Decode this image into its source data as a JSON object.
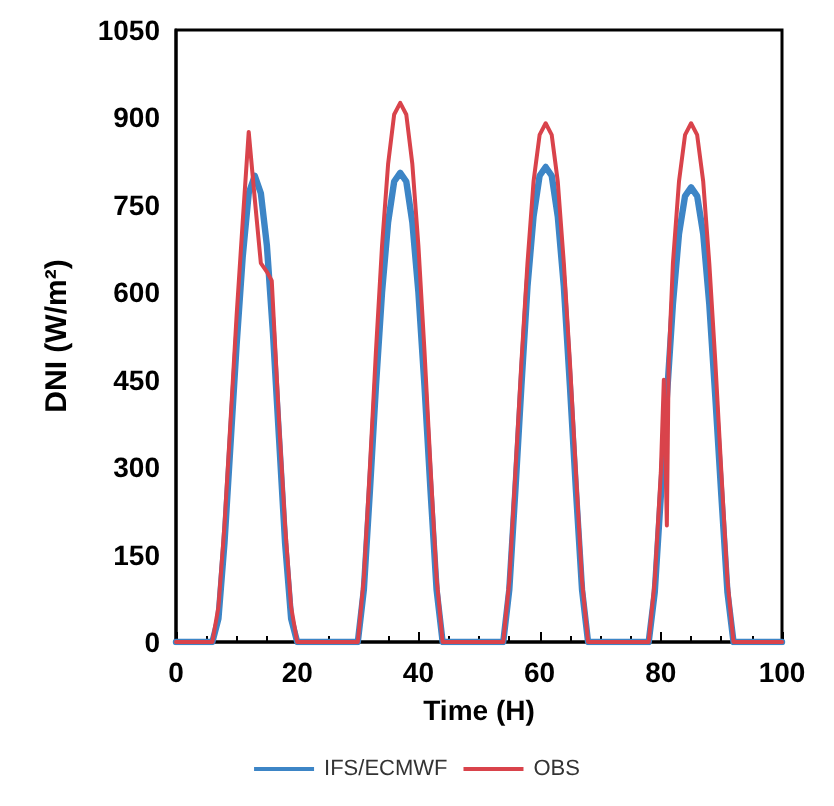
{
  "chart_data": {
    "type": "line",
    "xlabel": "Time (H)",
    "ylabel": "DNI (W/m²)",
    "xlim": [
      0,
      100
    ],
    "xticks": [
      0,
      20,
      40,
      60,
      80,
      100
    ],
    "ylim": [
      0,
      1050
    ],
    "yticks": [
      0,
      150,
      300,
      450,
      600,
      750,
      900,
      1050
    ],
    "grid": false,
    "legend": "bottom",
    "marker": "none",
    "line_style": "solid",
    "series": [
      {
        "name": "IFS/ECMWF",
        "color": "#3d85c6",
        "x": [
          0,
          6,
          7,
          8,
          9,
          10,
          11,
          12,
          13,
          14,
          15,
          16,
          17,
          18,
          19,
          20,
          30,
          31,
          32,
          33,
          34,
          35,
          36,
          37,
          38,
          39,
          40,
          41,
          42,
          43,
          44,
          54,
          55,
          56,
          57,
          58,
          59,
          60,
          61,
          62,
          63,
          64,
          65,
          66,
          67,
          68,
          78,
          79,
          80,
          81,
          82,
          83,
          84,
          85,
          86,
          87,
          88,
          89,
          90,
          91,
          92,
          100
        ],
        "values": [
          0,
          0,
          40,
          170,
          340,
          510,
          660,
          770,
          800,
          770,
          680,
          530,
          350,
          170,
          40,
          0,
          0,
          90,
          260,
          440,
          600,
          720,
          790,
          805,
          790,
          720,
          600,
          440,
          260,
          90,
          0,
          0,
          90,
          260,
          440,
          610,
          730,
          800,
          815,
          800,
          730,
          610,
          440,
          260,
          90,
          0,
          0,
          85,
          250,
          420,
          580,
          700,
          765,
          780,
          765,
          700,
          580,
          420,
          250,
          85,
          0,
          0
        ]
      },
      {
        "name": "OBS",
        "color": "#d9434b",
        "x": [
          0,
          6,
          7,
          8,
          9,
          10,
          11,
          12,
          13,
          14,
          15,
          15.8,
          17,
          18,
          19,
          20,
          30,
          31,
          32,
          33,
          34,
          35,
          36,
          37,
          38,
          39,
          40,
          41,
          42,
          43,
          44,
          54,
          55,
          56,
          57,
          58,
          59,
          60,
          61,
          62,
          63,
          64,
          65,
          66,
          67,
          68,
          78,
          79,
          80,
          80.5,
          81,
          81.3,
          82,
          83,
          84,
          85,
          86,
          87,
          88,
          89,
          90,
          91,
          92,
          100
        ],
        "values": [
          0,
          0,
          60,
          200,
          380,
          560,
          720,
          875,
          760,
          650,
          635,
          620,
          380,
          200,
          60,
          0,
          0,
          110,
          300,
          500,
          680,
          820,
          905,
          925,
          905,
          820,
          680,
          500,
          300,
          110,
          0,
          0,
          105,
          290,
          480,
          650,
          790,
          870,
          890,
          870,
          790,
          650,
          480,
          290,
          105,
          0,
          0,
          105,
          290,
          450,
          200,
          480,
          650,
          790,
          870,
          890,
          870,
          790,
          650,
          480,
          290,
          105,
          0,
          0
        ]
      }
    ]
  }
}
